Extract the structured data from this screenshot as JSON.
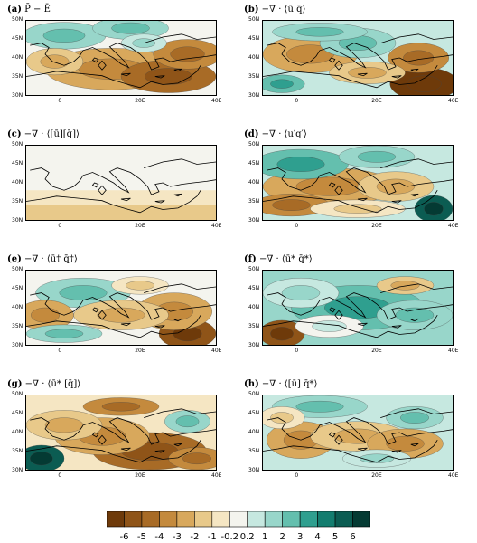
{
  "panels": [
    {
      "id": "a",
      "letter": "(a)",
      "expr": "P̄ − Ē"
    },
    {
      "id": "b",
      "letter": "(b)",
      "expr": "−∇ · ⟨ū q̄⟩"
    },
    {
      "id": "c",
      "letter": "(c)",
      "expr": "−∇ · ⟨[ū][q̄]⟩"
    },
    {
      "id": "d",
      "letter": "(d)",
      "expr": "−∇ · ⟨u′q′⟩"
    },
    {
      "id": "e",
      "letter": "(e)",
      "expr": "−∇ · ⟨ū† q̄†⟩"
    },
    {
      "id": "f",
      "letter": "(f)",
      "expr": "−∇ · ⟨ū* q̄*⟩"
    },
    {
      "id": "g",
      "letter": "(g)",
      "expr": "−∇ · ⟨ū* [q̄]⟩"
    },
    {
      "id": "h",
      "letter": "(h)",
      "expr": "−∇ · ⟨[ū] q̄*⟩"
    }
  ],
  "lat_ticks": [
    "50N",
    "45N",
    "40N",
    "35N",
    "30N"
  ],
  "lon_ticks": [
    "0",
    "20E",
    "40E"
  ],
  "colorbar": {
    "labels": [
      "-6",
      "-5",
      "-4",
      "-3",
      "-2",
      "-1",
      "-0.2",
      "0.2",
      "1",
      "2",
      "3",
      "4",
      "5",
      "6"
    ],
    "colors": [
      "#6e3a0a",
      "#8f5418",
      "#a86b26",
      "#c48a3d",
      "#d8a85c",
      "#e8c98a",
      "#f5e6c3",
      "#f4f4ee",
      "#c6e8e0",
      "#98d6ca",
      "#64bfae",
      "#2f9f8f",
      "#137d6f",
      "#0b5c52",
      "#043a33"
    ]
  }
}
